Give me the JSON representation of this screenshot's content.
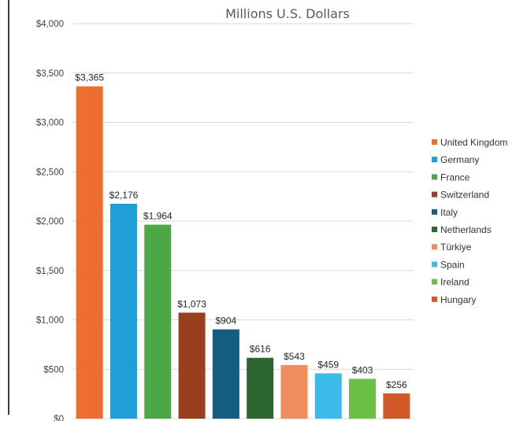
{
  "chart_data": {
    "type": "bar",
    "title": "Millions U.S. Dollars",
    "categories": [
      "United Kingdom",
      "Germany",
      "France",
      "Switzerland",
      "Italy",
      "Netherlands",
      "Türkiye",
      "Spain",
      "Ireland",
      "Hungary"
    ],
    "values": [
      3365,
      2176,
      1964,
      1073,
      904,
      616,
      543,
      459,
      403,
      256
    ],
    "data_labels": [
      "$3,365",
      "$2,176",
      "$1,964",
      "$1,073",
      "$904",
      "$616",
      "$543",
      "$459",
      "$403",
      "$256"
    ],
    "colors": [
      "#ED6E2F",
      "#1F9ED8",
      "#4BA844",
      "#9A3F1E",
      "#135E7E",
      "#2D6530",
      "#EF8E5C",
      "#3BBBEA",
      "#6ABF44",
      "#D05A27"
    ],
    "ylim": [
      0,
      4000
    ],
    "yticks": [
      0,
      500,
      1000,
      1500,
      2000,
      2500,
      3000,
      3500,
      4000
    ],
    "ytick_labels": [
      "$0",
      "$500",
      "$1,000",
      "$1,500",
      "$2,000",
      "$2,500",
      "$3,000",
      "$3,500",
      "$4,000"
    ],
    "xlabel": "",
    "ylabel": "",
    "grid": true,
    "legend_position": "right"
  }
}
